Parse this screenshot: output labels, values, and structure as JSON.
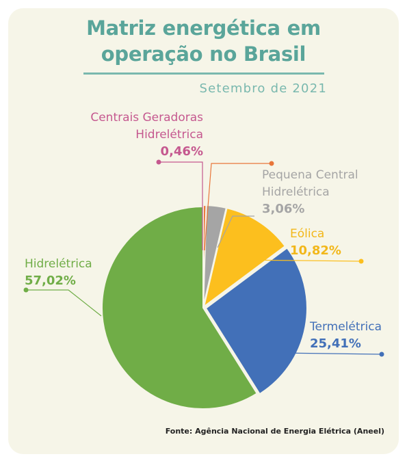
{
  "title_line1": "Matriz energética em",
  "title_line2": "operação no Brasil",
  "subtitle": "Setembro de 2021",
  "source": "Fonte: Agência Nacional de Energia Elétrica (Aneel)",
  "chart_data": {
    "type": "pie",
    "title": "Matriz energética em operação no Brasil",
    "subtitle": "Setembro de 2021",
    "slices": [
      {
        "name_lines": [
          "Centrais Geradoras",
          "Hidrelétrica"
        ],
        "value": 0.46,
        "label": "0,46%",
        "color": "#e8763a",
        "name_color": "#c5588f"
      },
      {
        "name_lines": [
          "Pequena Central",
          "Hidrelétrica"
        ],
        "value": 3.06,
        "label": "3,06%",
        "color": "#a5a5a5",
        "name_color": "#a5a5a5"
      },
      {
        "name_lines": [
          "Eólica"
        ],
        "value": 10.82,
        "label": "10,82%",
        "color": "#fcbf1e",
        "name_color": "#f2b71a"
      },
      {
        "name_lines": [
          "Termelétrica"
        ],
        "value": 25.41,
        "label": "25,41%",
        "color": "#4270b8",
        "name_color": "#4270b8"
      },
      {
        "name_lines": [
          "Hidrelétrica"
        ],
        "value": 57.02,
        "label": "57,02%",
        "color": "#70ad47",
        "name_color": "#70ad47"
      }
    ],
    "start_angle_deg": 0,
    "direction": "clockwise",
    "exploded_slice": "Hidrelétrica"
  }
}
